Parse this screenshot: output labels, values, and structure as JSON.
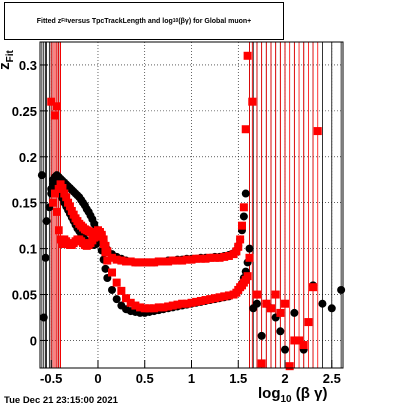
{
  "header": {
    "title": "Fitted z_{Fit} versus TpcTrackLength and log_{10}(βγ) for Global muon+",
    "title_display": "Fitted  z",
    "title_sub": "Fit",
    "title_rest": "  versus TpcTrackLength and log",
    "title_sub2": "10",
    "title_tail": "(βγ) for Global muon+"
  },
  "footer": {
    "timestamp": "Tue Dec 21 23:15:00 2021"
  },
  "axes": {
    "xlabel": "log",
    "xlabel_sub": "10",
    "xlabel_tail": "(β γ)",
    "ylabel": "z",
    "ylabel_sub": "Fit"
  },
  "chart_data": {
    "type": "scatter",
    "title": "Fitted z_{Fit} versus TpcTrackLength and log_{10}(βγ) for Global muon+",
    "xlabel": "log10(β γ)",
    "ylabel": "z_Fit",
    "xlim": [
      -0.62,
      2.62
    ],
    "ylim": [
      -0.03,
      0.325
    ],
    "grid": true,
    "xticks": [
      -0.5,
      0,
      0.5,
      1,
      1.5,
      2,
      2.5
    ],
    "xtick_labels": [
      "-0.5",
      "0",
      "0.5",
      "1",
      "1.5",
      "2",
      "2.5"
    ],
    "yticks": [
      0,
      0.05,
      0.1,
      0.15,
      0.2,
      0.25,
      0.3
    ],
    "ytick_labels": [
      "0",
      "0.05",
      "0.1",
      "0.15",
      "0.2",
      "0.25",
      "0.3"
    ],
    "series": [
      {
        "color": "#000000",
        "marker": "circle",
        "x": [
          -0.6,
          -0.58,
          -0.56,
          -0.55,
          -0.52,
          -0.5,
          -0.48,
          -0.46,
          -0.44,
          -0.42,
          -0.4,
          -0.38,
          -0.36,
          -0.34,
          -0.32,
          -0.3,
          -0.28,
          -0.26,
          -0.24,
          -0.22,
          -0.2,
          -0.18,
          -0.16,
          -0.14,
          -0.12,
          -0.1,
          -0.08,
          -0.06,
          -0.04,
          -0.02,
          0.0,
          0.02,
          0.04,
          0.06,
          0.08,
          0.1,
          0.15,
          0.2,
          0.25,
          0.3,
          0.35,
          0.4,
          0.45,
          0.5,
          0.55,
          0.6,
          0.65,
          0.7,
          0.75,
          0.8,
          0.85,
          0.9,
          0.95,
          1.0,
          1.05,
          1.1,
          1.15,
          1.2,
          1.25,
          1.3,
          1.35,
          1.4,
          1.45,
          1.48,
          1.5,
          1.52,
          1.54,
          1.56,
          1.58,
          1.6,
          1.62,
          1.66,
          1.7,
          1.75,
          1.8,
          1.85,
          1.9,
          1.95,
          2.0,
          2.1,
          2.2,
          2.3,
          2.4,
          2.5,
          2.6
        ],
        "y": [
          0.18,
          0.025,
          0.09,
          0.13,
          0.145,
          0.16,
          0.175,
          0.178,
          0.18,
          0.178,
          0.176,
          0.174,
          0.172,
          0.17,
          0.168,
          0.166,
          0.164,
          0.162,
          0.16,
          0.158,
          0.156,
          0.153,
          0.15,
          0.147,
          0.143,
          0.14,
          0.136,
          0.132,
          0.127,
          0.121,
          0.115,
          0.107,
          0.098,
          0.088,
          0.078,
          0.068,
          0.055,
          0.045,
          0.038,
          0.034,
          0.032,
          0.031,
          0.03,
          0.03,
          0.031,
          0.032,
          0.033,
          0.034,
          0.035,
          0.036,
          0.037,
          0.038,
          0.039,
          0.04,
          0.041,
          0.042,
          0.043,
          0.044,
          0.045,
          0.046,
          0.047,
          0.048,
          0.05,
          0.052,
          0.055,
          0.058,
          0.062,
          0.068,
          0.075,
          0.085,
          0.1,
          0.035,
          0.04,
          0.005,
          0.04,
          0.035,
          0.025,
          0.01,
          -0.01,
          0.03,
          -0.01,
          0.06,
          0.04,
          0.035,
          0.055
        ]
      },
      {
        "color": "#000000",
        "marker": "circle",
        "x": [
          -0.5,
          -0.48,
          -0.46,
          -0.44,
          -0.42,
          -0.4,
          -0.38,
          -0.36,
          -0.34,
          -0.32,
          -0.3,
          -0.28,
          -0.26,
          -0.24,
          -0.22,
          -0.2,
          -0.18,
          -0.16,
          -0.14,
          -0.12,
          -0.1,
          -0.08,
          -0.06,
          -0.04,
          -0.02,
          0.0,
          0.02,
          0.04,
          0.06,
          0.08,
          0.1,
          0.15,
          0.2,
          0.25,
          0.3,
          0.35,
          0.4,
          0.45,
          0.5,
          0.55,
          0.6,
          0.65,
          0.7,
          0.75,
          0.8,
          0.85,
          0.9,
          0.95,
          1.0,
          1.05,
          1.1,
          1.15,
          1.2,
          1.25,
          1.3,
          1.35,
          1.4,
          1.45,
          1.48,
          1.5,
          1.52,
          1.54,
          1.56,
          1.58
        ],
        "y": [
          0.165,
          0.17,
          0.172,
          0.17,
          0.165,
          0.16,
          0.155,
          0.15,
          0.146,
          0.142,
          0.138,
          0.134,
          0.13,
          0.126,
          0.122,
          0.119,
          0.116,
          0.113,
          0.11,
          0.108,
          0.106,
          0.105,
          0.104,
          0.104,
          0.105,
          0.107,
          0.108,
          0.108,
          0.106,
          0.103,
          0.099,
          0.094,
          0.091,
          0.089,
          0.087,
          0.086,
          0.085,
          0.085,
          0.085,
          0.085,
          0.085,
          0.086,
          0.086,
          0.087,
          0.087,
          0.088,
          0.088,
          0.089,
          0.089,
          0.089,
          0.09,
          0.09,
          0.09,
          0.091,
          0.091,
          0.092,
          0.093,
          0.095,
          0.098,
          0.103,
          0.11,
          0.12,
          0.135,
          0.16
        ]
      },
      {
        "color": "#ff0000",
        "marker": "square",
        "x": [
          -0.46,
          -0.44,
          -0.42,
          -0.4,
          -0.38,
          -0.36,
          -0.34,
          -0.32,
          -0.3,
          -0.28,
          -0.26,
          -0.24,
          -0.22,
          -0.2,
          -0.18,
          -0.16,
          -0.14,
          -0.12,
          -0.1,
          -0.08,
          -0.06,
          -0.04,
          -0.02,
          0.0,
          0.02,
          0.04,
          0.06,
          0.08,
          0.1,
          0.15,
          0.2,
          0.25,
          0.3,
          0.35,
          0.4,
          0.45,
          0.5,
          0.55,
          0.6,
          0.65,
          0.7,
          0.75,
          0.8,
          0.85,
          0.9,
          0.95,
          1.0,
          1.05,
          1.1,
          1.15,
          1.2,
          1.25,
          1.3,
          1.35,
          1.4,
          1.45,
          1.48,
          1.5,
          1.52,
          1.54,
          1.56,
          1.58,
          1.6,
          1.62
        ],
        "y": [
          0.245,
          0.255,
          0.12,
          0.11,
          0.105,
          0.11,
          0.108,
          0.105,
          0.104,
          0.104,
          0.106,
          0.108,
          0.11,
          0.11,
          0.108,
          0.106,
          0.104,
          0.103,
          0.104,
          0.106,
          0.109,
          0.112,
          0.116,
          0.12,
          0.118,
          0.113,
          0.105,
          0.096,
          0.087,
          0.074,
          0.063,
          0.054,
          0.046,
          0.041,
          0.038,
          0.036,
          0.035,
          0.035,
          0.035,
          0.036,
          0.036,
          0.037,
          0.038,
          0.039,
          0.04,
          0.04,
          0.041,
          0.042,
          0.043,
          0.044,
          0.045,
          0.046,
          0.047,
          0.048,
          0.049,
          0.05,
          0.052,
          0.055,
          0.058,
          0.06,
          0.063,
          0.066,
          0.07,
          0.09
        ]
      },
      {
        "color": "#ff0000",
        "marker": "square",
        "x": [
          -0.5,
          -0.48,
          -0.46,
          -0.44,
          -0.42,
          -0.4,
          -0.38,
          -0.36,
          -0.34,
          -0.32,
          -0.3,
          -0.28,
          -0.26,
          -0.24,
          -0.22,
          -0.2,
          -0.18,
          -0.16,
          -0.14,
          -0.12,
          -0.1,
          -0.08,
          -0.06,
          -0.04,
          -0.02,
          0.0,
          0.02,
          0.04,
          0.06,
          0.08,
          0.1,
          0.15,
          0.2,
          0.25,
          0.3,
          0.35,
          0.4,
          0.45,
          0.5,
          0.55,
          0.6,
          0.65,
          0.7,
          0.75,
          0.8,
          0.85,
          0.9,
          0.95,
          1.0,
          1.05,
          1.1,
          1.15,
          1.2,
          1.25,
          1.3,
          1.35,
          1.4,
          1.45,
          1.48,
          1.5,
          1.52,
          1.54,
          1.56,
          1.58,
          1.6,
          1.65,
          1.7,
          1.75,
          1.8,
          1.85,
          1.9,
          1.95,
          2.0,
          2.05,
          2.1,
          2.15,
          2.2,
          2.25,
          2.3,
          2.35
        ],
        "y": [
          0.26,
          0.15,
          0.16,
          0.14,
          0.165,
          0.17,
          0.166,
          0.16,
          0.156,
          0.15,
          0.146,
          0.141,
          0.137,
          0.133,
          0.13,
          0.127,
          0.125,
          0.123,
          0.121,
          0.12,
          0.119,
          0.118,
          0.117,
          0.117,
          0.118,
          0.119,
          0.118,
          0.115,
          0.11,
          0.103,
          0.097,
          0.09,
          0.088,
          0.087,
          0.086,
          0.086,
          0.085,
          0.085,
          0.085,
          0.085,
          0.085,
          0.086,
          0.086,
          0.086,
          0.087,
          0.087,
          0.087,
          0.088,
          0.088,
          0.089,
          0.089,
          0.089,
          0.09,
          0.09,
          0.09,
          0.091,
          0.092,
          0.094,
          0.097,
          0.102,
          0.11,
          0.125,
          0.145,
          0.23,
          0.31,
          0.26,
          0.05,
          -0.025,
          0.04,
          0.035,
          0.05,
          0.03,
          0.04,
          -0.028,
          0.0,
          0.0,
          -0.005,
          0.02,
          0.058,
          0.228
        ]
      }
    ]
  }
}
